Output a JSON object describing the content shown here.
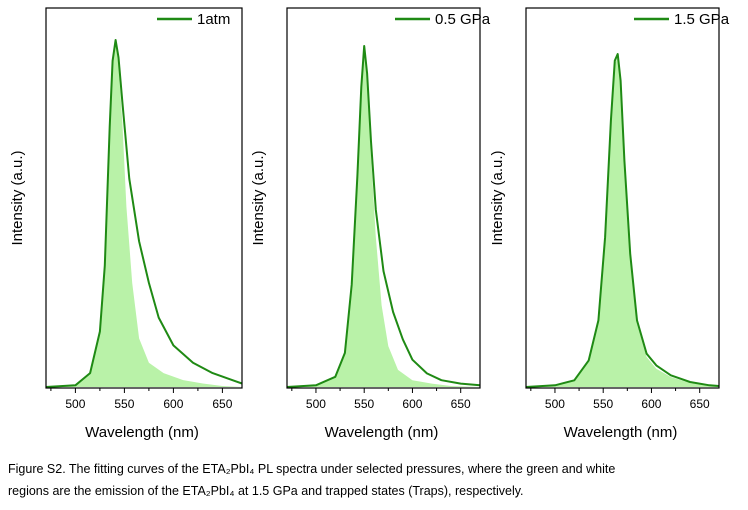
{
  "chart_data": [
    {
      "type": "line",
      "title": "",
      "xlabel": "Wavelength (nm)",
      "ylabel": "Intensity (a.u.)",
      "xlim": [
        470,
        670
      ],
      "xticks": [
        500,
        550,
        600,
        650
      ],
      "legend": {
        "label": "1atm",
        "placement": "top-right"
      },
      "series": [
        {
          "name": "1atm",
          "x": [
            470,
            500,
            515,
            525,
            530,
            535,
            538,
            541,
            544,
            548,
            555,
            565,
            575,
            585,
            600,
            620,
            640,
            660,
            670
          ],
          "y": [
            0,
            0.005,
            0.04,
            0.16,
            0.35,
            0.75,
            0.94,
            1.0,
            0.95,
            0.82,
            0.6,
            0.42,
            0.3,
            0.2,
            0.12,
            0.07,
            0.04,
            0.02,
            0.01
          ]
        },
        {
          "x": [
            470,
            500,
            515,
            525,
            530,
            535,
            538,
            541,
            544,
            548,
            552,
            558,
            565,
            575,
            590,
            610,
            630,
            650,
            670
          ],
          "y": [
            0,
            0.005,
            0.04,
            0.15,
            0.34,
            0.73,
            0.93,
            0.99,
            0.93,
            0.76,
            0.52,
            0.3,
            0.14,
            0.07,
            0.04,
            0.02,
            0.01,
            0.003,
            0
          ]
        }
      ]
    },
    {
      "type": "line",
      "title": "",
      "xlabel": "Wavelength (nm)",
      "ylabel": "Intensity (a.u.)",
      "xlim": [
        470,
        670
      ],
      "xticks": [
        500,
        550,
        600,
        650
      ],
      "legend": {
        "label": "0.5 GPa",
        "placement": "top-right"
      },
      "series": [
        {
          "name": "0.5 GPa",
          "x": [
            470,
            500,
            520,
            530,
            537,
            543,
            547,
            550,
            553,
            557,
            562,
            570,
            580,
            590,
            600,
            615,
            630,
            650,
            670
          ],
          "y": [
            0,
            0.005,
            0.03,
            0.1,
            0.3,
            0.62,
            0.88,
            1.0,
            0.92,
            0.72,
            0.52,
            0.34,
            0.22,
            0.14,
            0.08,
            0.04,
            0.02,
            0.01,
            0.005
          ]
        },
        {
          "x": [
            470,
            500,
            520,
            530,
            537,
            543,
            547,
            550,
            553,
            557,
            562,
            568,
            575,
            585,
            600,
            620,
            640,
            670
          ],
          "y": [
            0,
            0.005,
            0.03,
            0.1,
            0.29,
            0.61,
            0.86,
            0.98,
            0.9,
            0.68,
            0.44,
            0.24,
            0.12,
            0.05,
            0.02,
            0.01,
            0.003,
            0
          ]
        }
      ]
    },
    {
      "type": "line",
      "title": "",
      "xlabel": "Wavelength (nm)",
      "ylabel": "Intensity (a.u.)",
      "xlim": [
        470,
        670
      ],
      "xticks": [
        500,
        550,
        600,
        650
      ],
      "legend": {
        "label": "1.5 GPa",
        "placement": "top-right"
      },
      "series": [
        {
          "name": "1.5 GPa",
          "x": [
            470,
            500,
            520,
            535,
            545,
            552,
            558,
            562,
            565,
            568,
            572,
            578,
            585,
            595,
            605,
            620,
            640,
            660,
            670
          ],
          "y": [
            0,
            0.005,
            0.02,
            0.08,
            0.2,
            0.45,
            0.8,
            0.98,
            1.0,
            0.92,
            0.68,
            0.4,
            0.2,
            0.1,
            0.065,
            0.035,
            0.015,
            0.005,
            0.003
          ]
        },
        {
          "x": [
            470,
            500,
            520,
            535,
            545,
            552,
            558,
            562,
            565,
            568,
            572,
            578,
            585,
            595,
            605,
            620,
            640,
            660,
            670
          ],
          "y": [
            0,
            0.005,
            0.02,
            0.08,
            0.2,
            0.45,
            0.8,
            0.97,
            0.99,
            0.91,
            0.67,
            0.39,
            0.19,
            0.09,
            0.055,
            0.03,
            0.012,
            0.004,
            0.002
          ]
        }
      ]
    }
  ],
  "caption": {
    "line1": "Figure S2. The fitting curves of the ETA₂PbI₄ PL spectra under selected pressures, where the green and white",
    "line2": "regions are the emission of the ETA₂PbI₄ at 1.5 GPa and trapped states (Traps), respectively."
  },
  "colors": {
    "curve": "#1f8a14",
    "fill": "#b9f2a8",
    "axis": "#000000"
  }
}
